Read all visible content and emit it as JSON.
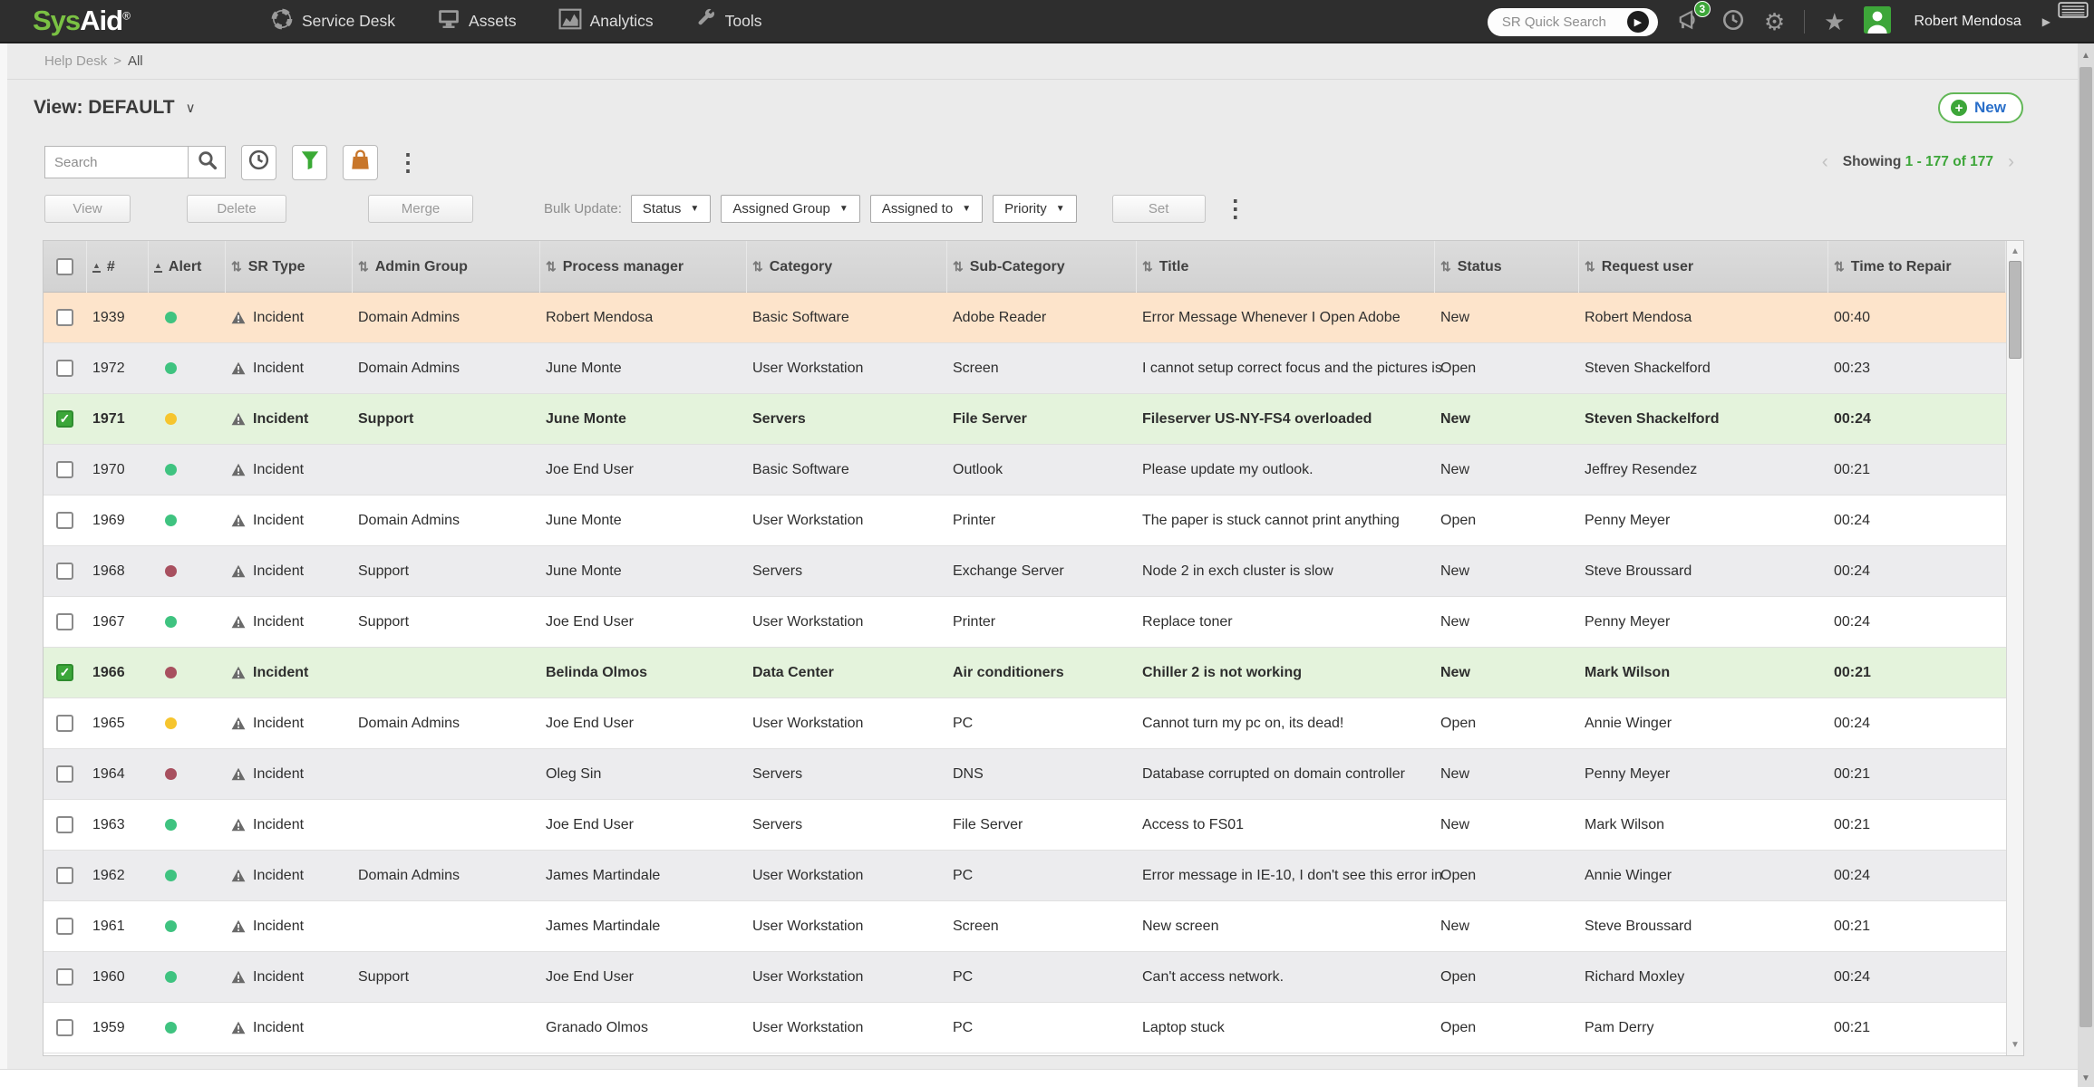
{
  "brand": {
    "sys": "Sys",
    "aid": "Aid",
    "registered": "®"
  },
  "nav": {
    "items": [
      {
        "label": "Service Desk",
        "icon": "life-ring-icon"
      },
      {
        "label": "Assets",
        "icon": "monitor-icon"
      },
      {
        "label": "Analytics",
        "icon": "chart-icon"
      },
      {
        "label": "Tools",
        "icon": "wrench-icon"
      }
    ]
  },
  "topbar": {
    "quick_search_placeholder": "SR Quick Search",
    "notification_badge": "3",
    "user_name": "Robert Mendosa"
  },
  "breadcrumb": {
    "section": "Help Desk",
    "separator": ">",
    "current": "All"
  },
  "view_bar": {
    "view_label": "View: DEFAULT",
    "new_label": "New"
  },
  "toolbar": {
    "search_placeholder": "Search",
    "showing_label": "Showing",
    "showing_range": "1 - 177 of 177"
  },
  "bulk_bar": {
    "view": "View",
    "delete": "Delete",
    "merge": "Merge",
    "label": "Bulk Update:",
    "dropdowns": [
      "Status",
      "Assigned Group",
      "Assigned to",
      "Priority"
    ],
    "set": "Set"
  },
  "table": {
    "columns": [
      {
        "label": "#",
        "sort": "asc"
      },
      {
        "label": "Alert",
        "sort": "asc"
      },
      {
        "label": "SR Type",
        "sort": "both"
      },
      {
        "label": "Admin Group",
        "sort": "both"
      },
      {
        "label": "Process manager",
        "sort": "both"
      },
      {
        "label": "Category",
        "sort": "both"
      },
      {
        "label": "Sub-Category",
        "sort": "both"
      },
      {
        "label": "Title",
        "sort": "both"
      },
      {
        "label": "Status",
        "sort": "both"
      },
      {
        "label": "Request user",
        "sort": "both"
      },
      {
        "label": "Time to Repair",
        "sort": "both"
      }
    ],
    "rows": [
      {
        "num": "1939",
        "alert": "green",
        "sr_type": "Incident",
        "admin_group": "Domain Admins",
        "process_manager": "Robert Mendosa",
        "category": "Basic Software",
        "sub_category": "Adobe Reader",
        "title": "Error Message Whenever I Open Adobe",
        "status": "New",
        "request_user": "Robert Mendosa",
        "time_to_repair": "00:40",
        "style": "peach",
        "checked": false
      },
      {
        "num": "1972",
        "alert": "green",
        "sr_type": "Incident",
        "admin_group": "Domain Admins",
        "process_manager": "June Monte",
        "category": "User Workstation",
        "sub_category": "Screen",
        "title": "I cannot setup correct focus and the pictures is",
        "status": "Open",
        "request_user": "Steven Shackelford",
        "time_to_repair": "00:23",
        "style": "gray",
        "checked": false
      },
      {
        "num": "1971",
        "alert": "yellow",
        "sr_type": "Incident",
        "admin_group": "Support",
        "process_manager": "June Monte",
        "category": "Servers",
        "sub_category": "File Server",
        "title": "Fileserver US-NY-FS4 overloaded",
        "status": "New",
        "request_user": "Steven Shackelford",
        "time_to_repair": "00:24",
        "style": "green",
        "checked": true
      },
      {
        "num": "1970",
        "alert": "green",
        "sr_type": "Incident",
        "admin_group": "",
        "process_manager": "Joe End User",
        "category": "Basic Software",
        "sub_category": "Outlook",
        "title": "Please update my outlook.",
        "status": "New",
        "request_user": "Jeffrey Resendez",
        "time_to_repair": "00:21",
        "style": "gray",
        "checked": false
      },
      {
        "num": "1969",
        "alert": "green",
        "sr_type": "Incident",
        "admin_group": "Domain Admins",
        "process_manager": "June Monte",
        "category": "User Workstation",
        "sub_category": "Printer",
        "title": "The paper is stuck cannot print anything",
        "status": "Open",
        "request_user": "Penny Meyer",
        "time_to_repair": "00:24",
        "style": "white",
        "checked": false
      },
      {
        "num": "1968",
        "alert": "red",
        "sr_type": "Incident",
        "admin_group": "Support",
        "process_manager": "June Monte",
        "category": "Servers",
        "sub_category": "Exchange Server",
        "title": "Node 2 in exch cluster is slow",
        "status": "New",
        "request_user": "Steve Broussard",
        "time_to_repair": "00:24",
        "style": "gray",
        "checked": false
      },
      {
        "num": "1967",
        "alert": "green",
        "sr_type": "Incident",
        "admin_group": "Support",
        "process_manager": "Joe End User",
        "category": "User Workstation",
        "sub_category": "Printer",
        "title": "Replace toner",
        "status": "New",
        "request_user": "Penny Meyer",
        "time_to_repair": "00:24",
        "style": "white",
        "checked": false
      },
      {
        "num": "1966",
        "alert": "red",
        "sr_type": "Incident",
        "admin_group": "",
        "process_manager": "Belinda Olmos",
        "category": "Data Center",
        "sub_category": "Air conditioners",
        "title": "Chiller 2 is not working",
        "status": "New",
        "request_user": "Mark Wilson",
        "time_to_repair": "00:21",
        "style": "green",
        "checked": true
      },
      {
        "num": "1965",
        "alert": "yellow",
        "sr_type": "Incident",
        "admin_group": "Domain Admins",
        "process_manager": "Joe End User",
        "category": "User Workstation",
        "sub_category": "PC",
        "title": "Cannot turn my pc on, its dead!",
        "status": "Open",
        "request_user": "Annie Winger",
        "time_to_repair": "00:24",
        "style": "white",
        "checked": false
      },
      {
        "num": "1964",
        "alert": "red",
        "sr_type": "Incident",
        "admin_group": "",
        "process_manager": "Oleg Sin",
        "category": "Servers",
        "sub_category": "DNS",
        "title": "Database corrupted on domain controller",
        "status": "New",
        "request_user": "Penny Meyer",
        "time_to_repair": "00:21",
        "style": "gray",
        "checked": false
      },
      {
        "num": "1963",
        "alert": "green",
        "sr_type": "Incident",
        "admin_group": "",
        "process_manager": "Joe End User",
        "category": "Servers",
        "sub_category": "File Server",
        "title": "Access to FS01",
        "status": "New",
        "request_user": "Mark Wilson",
        "time_to_repair": "00:21",
        "style": "white",
        "checked": false
      },
      {
        "num": "1962",
        "alert": "green",
        "sr_type": "Incident",
        "admin_group": "Domain Admins",
        "process_manager": "James Martindale",
        "category": "User Workstation",
        "sub_category": "PC",
        "title": "Error message in IE-10, I don't see this error in",
        "status": "Open",
        "request_user": "Annie Winger",
        "time_to_repair": "00:24",
        "style": "gray",
        "checked": false
      },
      {
        "num": "1961",
        "alert": "green",
        "sr_type": "Incident",
        "admin_group": "",
        "process_manager": "James Martindale",
        "category": "User Workstation",
        "sub_category": "Screen",
        "title": "New screen",
        "status": "New",
        "request_user": "Steve Broussard",
        "time_to_repair": "00:21",
        "style": "white",
        "checked": false
      },
      {
        "num": "1960",
        "alert": "green",
        "sr_type": "Incident",
        "admin_group": "Support",
        "process_manager": "Joe End User",
        "category": "User Workstation",
        "sub_category": "PC",
        "title": "Can't access network.",
        "status": "Open",
        "request_user": "Richard Moxley",
        "time_to_repair": "00:24",
        "style": "gray",
        "checked": false
      },
      {
        "num": "1959",
        "alert": "green",
        "sr_type": "Incident",
        "admin_group": "",
        "process_manager": "Granado Olmos",
        "category": "User Workstation",
        "sub_category": "PC",
        "title": "Laptop stuck",
        "status": "Open",
        "request_user": "Pam Derry",
        "time_to_repair": "00:21",
        "style": "white",
        "checked": false
      }
    ]
  },
  "icons": {
    "gear": "⚙",
    "star": "★",
    "kebab": "⋮",
    "caret_right": "▶",
    "chevron_down": "∨",
    "sort_asc": "▲",
    "sort_both": "⇅",
    "prev": "‹",
    "next": "›",
    "plus": "+",
    "check": "✓",
    "scroll_up": "▲",
    "scroll_down": "▼",
    "go_arrow": "▶"
  },
  "colors": {
    "accent_green": "#3da639",
    "row_selected": "#e4f3dc",
    "row_highlight": "#fde4cb",
    "alert_green": "#3fc380",
    "alert_yellow": "#f6c52e",
    "alert_red": "#a8505f",
    "link_blue": "#2a6fc9",
    "funnel_green": "#3aaa35",
    "bag_orange": "#c8762a",
    "nav_bg": "#2e2e2e"
  }
}
